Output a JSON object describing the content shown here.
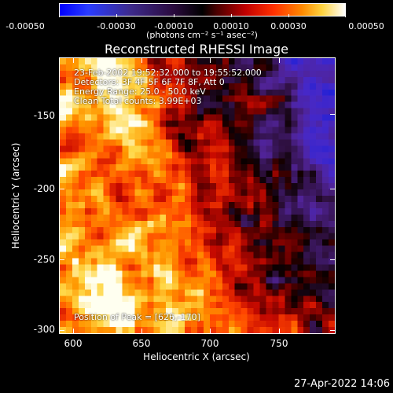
{
  "colorbar": {
    "tick_labels": [
      "-0.00050",
      "-0.00030",
      "-0.00010",
      "0.00010",
      "0.00030",
      "0.00050"
    ],
    "units": "(photons cm⁻² s⁻¹ asec⁻²)",
    "colors": [
      "#0000ff",
      "#3d2a8a",
      "#000000",
      "#c00000",
      "#ff8a00",
      "#ffffff"
    ]
  },
  "title": "Reconstructed RHESSI Image",
  "info": {
    "time_range": "23-Feb-2002 19:52:32.000 to 19:55:52.000",
    "detectors": "Detectors: 3F 4F 5F 6F 7F 8F, Att 0",
    "energy": "Energy Range: 25.0 - 50.0 keV",
    "clean": "Clean    Total counts: 3.99E+03",
    "peak": "Position of Peak = [626,-170]"
  },
  "axes": {
    "x_label": "Heliocentric X (arcsec)",
    "y_label": "Heliocentric Y (arcsec)",
    "x_ticks": [
      "600",
      "650",
      "700",
      "750"
    ],
    "y_ticks": [
      "-150",
      "-200",
      "-250",
      "-300"
    ],
    "x_range": [
      590,
      785
    ],
    "y_range": [
      -303,
      -108
    ]
  },
  "timestamp": "27-Apr-2022 14:06"
}
